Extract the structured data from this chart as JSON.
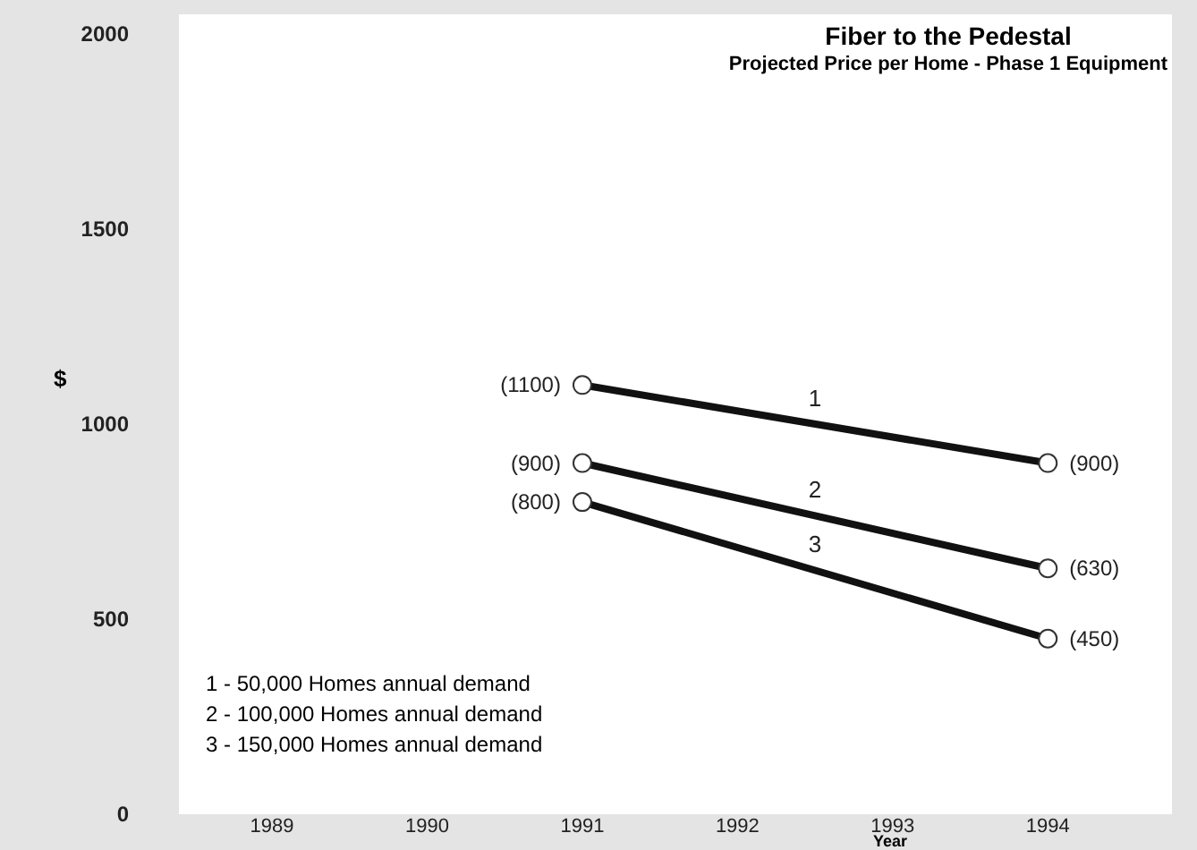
{
  "chart_data": {
    "type": "line",
    "title": "Fiber to the Pedestal",
    "subtitle": "Projected Price per Home - Phase 1 Equipment",
    "xlabel": "Year",
    "ylabel": "$",
    "x": [
      1991,
      1994
    ],
    "series": [
      {
        "name": "1",
        "color": "#111111",
        "values": [
          1100,
          900
        ],
        "value_labels": [
          "(1100)",
          "(900)"
        ]
      },
      {
        "name": "2",
        "color": "#111111",
        "values": [
          900,
          630
        ],
        "value_labels": [
          "(900)",
          "(630)"
        ]
      },
      {
        "name": "3",
        "color": "#111111",
        "values": [
          800,
          450
        ],
        "value_labels": [
          "(800)",
          "(450)"
        ]
      }
    ],
    "xlim": [
      1988.4,
      1994.8
    ],
    "xticks": [
      1989,
      1990,
      1991,
      1992,
      1993,
      1994
    ],
    "ylim": [
      0,
      2050
    ],
    "yticks": [
      0,
      500,
      1000,
      1500,
      2000
    ],
    "grid": false,
    "legend": false,
    "marker": "circle",
    "line_style": "solid",
    "annotations": [
      "1 - 50,000 Homes annual demand",
      "2 - 100,000 Homes annual demand",
      "3 - 150,000 Homes annual demand"
    ]
  }
}
